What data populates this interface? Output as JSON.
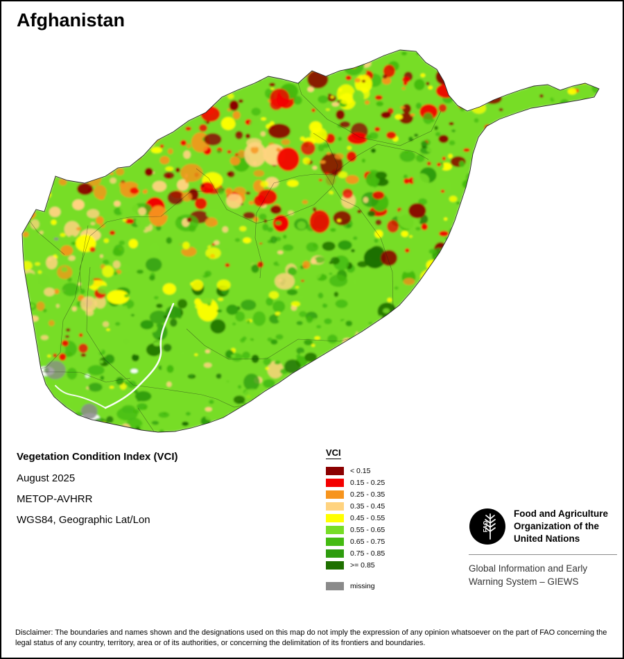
{
  "page": {
    "title": "Afghanistan"
  },
  "map": {
    "region_name": "Afghanistan",
    "kind": "VCI raster map"
  },
  "metadata": {
    "title": "Vegetation Condition Index (VCI)",
    "date": "August 2025",
    "sensor": "METOP-AVHRR",
    "projection": "WGS84, Geographic Lat/Lon"
  },
  "legend": {
    "title": "VCI",
    "classes": [
      {
        "label": "< 0.15",
        "color": "#8B0000"
      },
      {
        "label": "0.15 - 0.25",
        "color": "#F40000"
      },
      {
        "label": "0.25 - 0.35",
        "color": "#F7941D"
      },
      {
        "label": "0.35 - 0.45",
        "color": "#FFD37F"
      },
      {
        "label": "0.45 - 0.55",
        "color": "#FFFF00"
      },
      {
        "label": "0.55 - 0.65",
        "color": "#77DD26"
      },
      {
        "label": "0.65 - 0.75",
        "color": "#44BB11"
      },
      {
        "label": "0.75 - 0.85",
        "color": "#2E9C0E"
      },
      {
        "label": ">= 0.85",
        "color": "#1E7000"
      }
    ],
    "missing": {
      "label": "missing",
      "color": "#8A8A8A"
    }
  },
  "branding": {
    "logo_text": "FAO",
    "org_name": "Food and Agriculture Organization of the United Nations",
    "giews": "Global Information and Early Warning System – GIEWS"
  },
  "disclaimer": "Disclaimer: The boundaries and names shown and the designations used on this map do not imply the expression of any opinion whatsoever on the part of FAO concerning the legal status of any country, territory, area or of its authorities, or concerning the delimitation of its frontiers and boundaries."
}
